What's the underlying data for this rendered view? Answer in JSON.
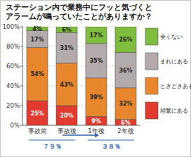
{
  "chart_data": {
    "type": "bar",
    "stacked": true,
    "title": "ステーション内で業務中にフッと気づくと\nアラームが鳴っていたことがありますか？",
    "categories": [
      "事故前",
      "事故後",
      "1年後",
      "2年後"
    ],
    "series": [
      {
        "name": "頻繁にある",
        "color": "#e23a2e",
        "values": [
          25,
          20,
          9,
          6
        ],
        "value_labels": [
          "25%",
          "20%",
          "9%",
          "6%"
        ]
      },
      {
        "name": "ときどきある",
        "color": "#e8862e",
        "values": [
          54,
          43,
          39,
          32
        ],
        "value_labels": [
          "54%",
          "43%",
          "39%",
          "32%"
        ]
      },
      {
        "name": "まれにある",
        "color": "#b3abab",
        "values": [
          17,
          31,
          35,
          36
        ],
        "value_labels": [
          "17%",
          "31%",
          "35%",
          "36%"
        ]
      },
      {
        "name": "全くない",
        "color": "#7fbd3e",
        "values": [
          4,
          6,
          17,
          26
        ],
        "value_labels": [
          "4%",
          "6%",
          "17%",
          "26%"
        ]
      }
    ],
    "ylim": [
      0,
      100
    ],
    "yticks": [
      {
        "value": 0,
        "label": "0%"
      },
      {
        "value": 20,
        "label": "20%"
      },
      {
        "value": 40,
        "label": "40%"
      },
      {
        "value": 60,
        "label": "60%"
      },
      {
        "value": 80,
        "label": "80%"
      },
      {
        "value": 100,
        "label": "100%"
      }
    ],
    "grid": true,
    "data_labels": true,
    "legend": "right",
    "annotations": [
      "７９％",
      "３８％"
    ]
  }
}
